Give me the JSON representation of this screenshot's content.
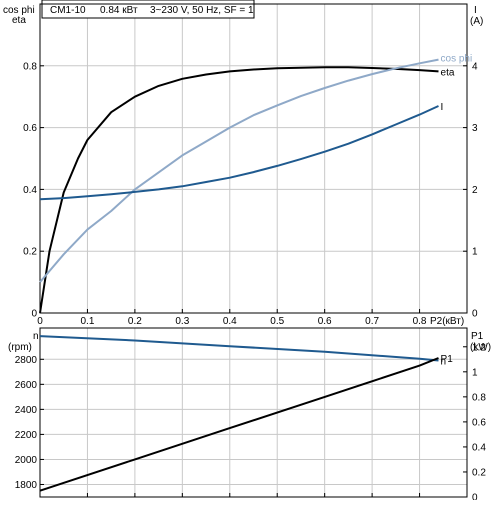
{
  "header": {
    "model": "CM1-10",
    "power": "0.84 кВт",
    "supply": "3~230 V, 50 Hz, SF = 1"
  },
  "chart_data": [
    {
      "type": "line",
      "x_label": "P2(кВт)",
      "xlim": [
        0,
        0.9
      ],
      "x_ticks": [
        "0",
        "0.1",
        "0.2",
        "0.3",
        "0.4",
        "0.5",
        "0.6",
        "0.7",
        "0.8"
      ],
      "y_left_label_1": "cos phi",
      "y_left_label_2": "eta",
      "ylim_left": [
        0,
        1.0
      ],
      "y_left_ticks": [
        "0",
        "0.2",
        "0.4",
        "0.6",
        "0.8"
      ],
      "y_right_label_1": "I",
      "y_right_label_2": "(A)",
      "ylim_right": [
        0,
        5
      ],
      "y_right_ticks": [
        "0",
        "1",
        "2",
        "3",
        "4"
      ],
      "grid": true,
      "series": [
        {
          "name": "eta",
          "axis": "left",
          "color": "#000000",
          "x": [
            0.0,
            0.02,
            0.05,
            0.08,
            0.1,
            0.15,
            0.2,
            0.25,
            0.3,
            0.35,
            0.4,
            0.45,
            0.5,
            0.55,
            0.6,
            0.65,
            0.7,
            0.75,
            0.8,
            0.84
          ],
          "y": [
            0.0,
            0.2,
            0.39,
            0.5,
            0.56,
            0.65,
            0.7,
            0.735,
            0.758,
            0.772,
            0.782,
            0.788,
            0.792,
            0.794,
            0.795,
            0.795,
            0.793,
            0.79,
            0.786,
            0.782
          ]
        },
        {
          "name": "cos phi",
          "axis": "left",
          "color": "#8fa9c8",
          "x": [
            0.0,
            0.05,
            0.1,
            0.15,
            0.2,
            0.25,
            0.3,
            0.35,
            0.4,
            0.45,
            0.5,
            0.55,
            0.6,
            0.65,
            0.7,
            0.75,
            0.8,
            0.84
          ],
          "y": [
            0.1,
            0.19,
            0.27,
            0.33,
            0.4,
            0.455,
            0.51,
            0.555,
            0.6,
            0.64,
            0.672,
            0.702,
            0.728,
            0.752,
            0.773,
            0.792,
            0.808,
            0.82
          ]
        },
        {
          "name": "I",
          "axis": "right",
          "color": "#1f5a8f",
          "x": [
            0.0,
            0.05,
            0.1,
            0.15,
            0.2,
            0.25,
            0.3,
            0.35,
            0.4,
            0.45,
            0.5,
            0.55,
            0.6,
            0.65,
            0.7,
            0.75,
            0.8,
            0.84
          ],
          "y": [
            1.84,
            1.86,
            1.89,
            1.92,
            1.96,
            2.0,
            2.05,
            2.12,
            2.19,
            2.28,
            2.38,
            2.49,
            2.61,
            2.74,
            2.89,
            3.05,
            3.21,
            3.35
          ]
        }
      ]
    },
    {
      "type": "line",
      "xlim": [
        0,
        0.9
      ],
      "y_left_label_1": "n",
      "y_left_label_2": "(rpm)",
      "ylim_left": [
        1700,
        3050
      ],
      "y_left_ticks": [
        "1800",
        "2000",
        "2200",
        "2400",
        "2600",
        "2800"
      ],
      "y_right_label_1": "P1",
      "y_right_label_2": "(kW)",
      "ylim_right": [
        0,
        1.35
      ],
      "y_right_ticks": [
        "0",
        "0.2",
        "0.4",
        "0.6",
        "0.8",
        "1",
        "1.2"
      ],
      "grid": true,
      "series": [
        {
          "name": "n",
          "axis": "left",
          "color": "#1f5a8f",
          "x": [
            0.0,
            0.2,
            0.4,
            0.6,
            0.8,
            0.84
          ],
          "y": [
            2985,
            2950,
            2905,
            2860,
            2805,
            2790
          ]
        },
        {
          "name": "P1",
          "axis": "right",
          "color": "#000000",
          "x": [
            0.0,
            0.2,
            0.4,
            0.6,
            0.8,
            0.84
          ],
          "y": [
            0.05,
            0.3,
            0.55,
            0.8,
            1.05,
            1.11
          ]
        }
      ]
    }
  ]
}
